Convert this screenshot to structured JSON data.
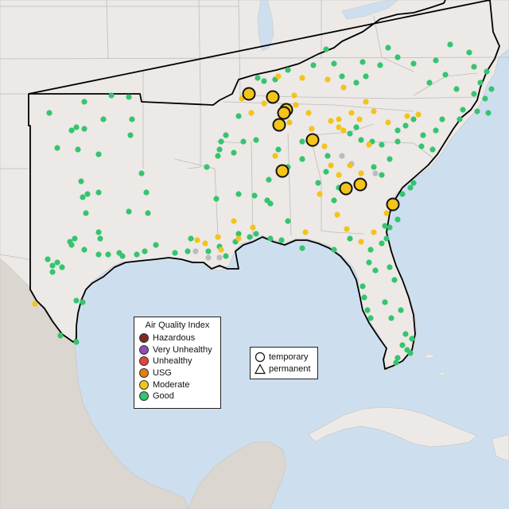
{
  "legend_aqi": {
    "title": "Air Quality Index",
    "categories": [
      {
        "label": "Hazardous",
        "color": "#7e2a22"
      },
      {
        "label": "Very Unhealthy",
        "color": "#8f4fae"
      },
      {
        "label": "Unhealthy",
        "color": "#e8433b"
      },
      {
        "label": "USG",
        "color": "#e27e12"
      },
      {
        "label": "Moderate",
        "color": "#f3c419"
      },
      {
        "label": "Good",
        "color": "#35c46f"
      }
    ]
  },
  "legend_type": {
    "items": [
      {
        "label": "temporary",
        "shape": "circle-icon"
      },
      {
        "label": "permanent",
        "shape": "triangle-icon"
      }
    ]
  },
  "colors": {
    "water": "#cddfef",
    "land": "#ece9e6",
    "mexico_terrain": "#dcd6d0",
    "region_outline": "#000000",
    "good": "#35c46f",
    "moderate": "#f3c419",
    "no_data": "#b9bcc0"
  }
}
